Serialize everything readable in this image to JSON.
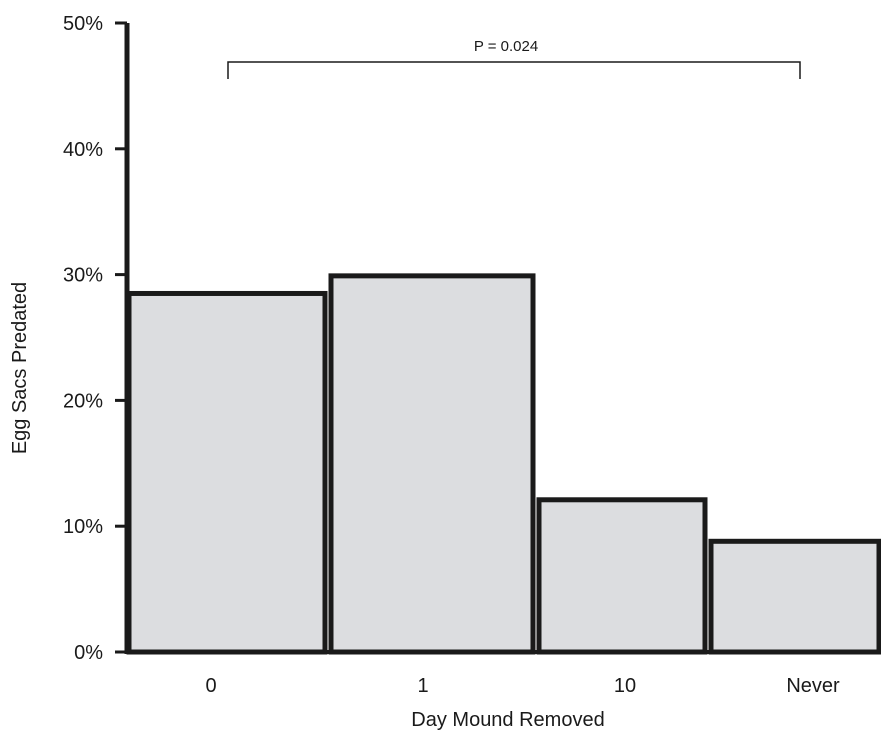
{
  "chart_data": {
    "type": "bar",
    "categories": [
      "0",
      "1",
      "10",
      "Never"
    ],
    "values": [
      28.5,
      29.9,
      12.1,
      8.8
    ],
    "xlabel": "Day Mound Removed",
    "ylabel": "Egg Sacs Predated",
    "ylim": [
      0,
      50
    ],
    "yticks": [
      "0%",
      "10%",
      "20%",
      "30%",
      "40%",
      "50%"
    ],
    "bar_fill": "#dcdde0",
    "bar_stroke": "#1a1a1a",
    "grid": false,
    "annotation": {
      "text": "P = 0.024",
      "from_category": "0",
      "to_category": "Never"
    }
  }
}
